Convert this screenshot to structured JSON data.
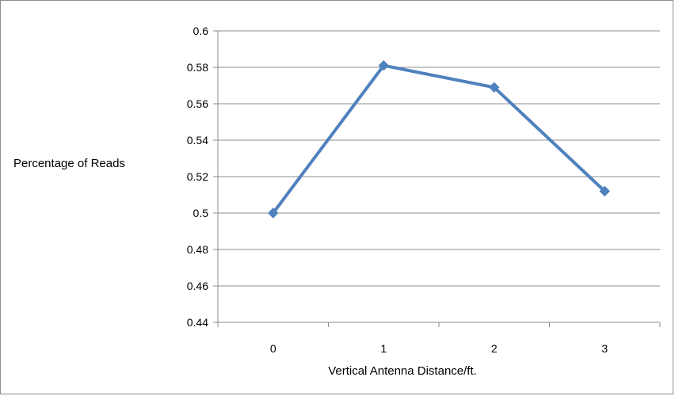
{
  "chart_data": {
    "type": "line",
    "title": "",
    "xlabel": "Vertical Antenna Distance/ft.",
    "ylabel": "Percentage of Reads",
    "categories": [
      "0",
      "1",
      "2",
      "3"
    ],
    "series": [
      {
        "values": [
          0.5,
          0.581,
          0.569,
          0.512
        ],
        "color": "#4f81bd"
      }
    ],
    "ylim": [
      0.44,
      0.6
    ],
    "yticks": [
      "0.6",
      "0.58",
      "0.56",
      "0.54",
      "0.52",
      "0.5",
      "0.48",
      "0.46",
      "0.44"
    ],
    "grid": true,
    "legend": "none",
    "marker": "diamond"
  }
}
